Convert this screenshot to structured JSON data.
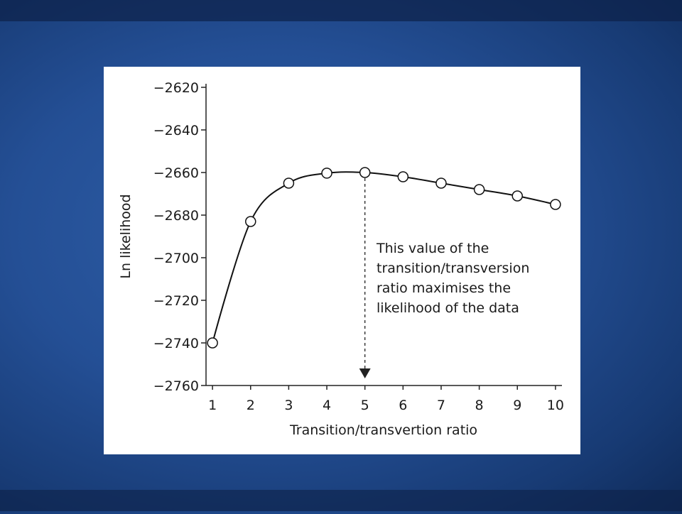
{
  "chart_data": {
    "type": "line",
    "x_label": "Transition/transvertion ratio",
    "y_label": "Ln likelihood",
    "x": [
      1,
      2,
      3,
      4,
      5,
      6,
      7,
      8,
      9,
      10
    ],
    "series": [
      {
        "color": "#111111",
        "values": [
          -2740,
          -2683,
          -2665,
          -2660.3,
          -2660,
          -2662,
          -2665,
          -2668,
          -2671,
          -2675
        ]
      }
    ],
    "xlim": [
      0.83,
      10.17
    ],
    "xticks": [
      1,
      2,
      3,
      4,
      5,
      6,
      7,
      8,
      9,
      10
    ],
    "ylim": [
      -2760,
      -2620
    ],
    "yticks": [
      {
        "value": -2620,
        "label": "−2620"
      },
      {
        "value": -2640,
        "label": "−2640"
      },
      {
        "value": -2660,
        "label": "−2660"
      },
      {
        "value": -2680,
        "label": "−2680"
      },
      {
        "value": -2700,
        "label": "−2700"
      },
      {
        "value": -2720,
        "label": "−2720"
      },
      {
        "value": -2740,
        "label": "−2740"
      },
      {
        "value": -2760,
        "label": "−2760"
      }
    ],
    "annotation": {
      "x": 5,
      "text": [
        "This value of the",
        "transition/transversion",
        "ratio maximises the",
        "likelihood of the data"
      ]
    }
  }
}
